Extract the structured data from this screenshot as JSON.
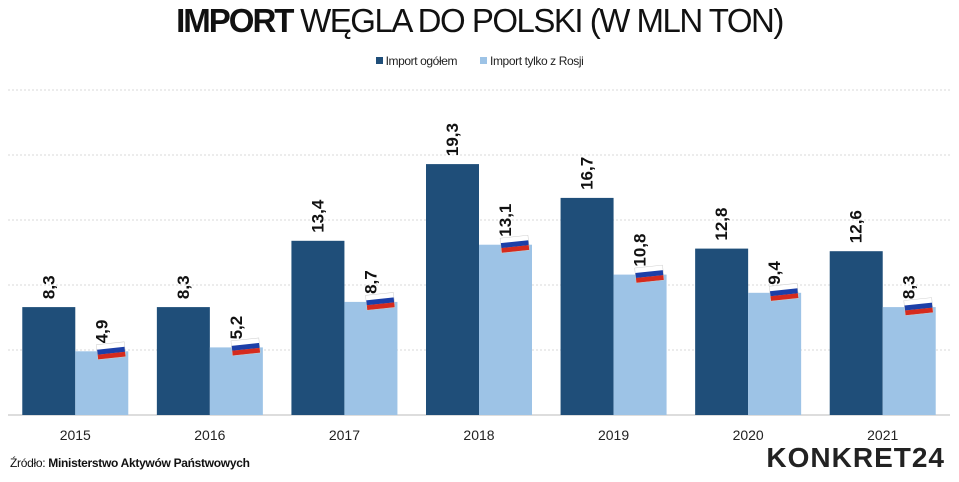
{
  "chart_data": {
    "type": "bar",
    "title_bold": "IMPORT",
    "title_rest": "WĘGLA DO POLSKI (W MLN TON)",
    "categories": [
      "2015",
      "2016",
      "2017",
      "2018",
      "2019",
      "2020",
      "2021"
    ],
    "series": [
      {
        "name": "Import ogółem",
        "values": [
          8.3,
          8.3,
          13.4,
          19.3,
          16.7,
          12.8,
          12.6
        ],
        "labels": [
          "8,3",
          "8,3",
          "13,4",
          "19,3",
          "16,7",
          "12,8",
          "12,6"
        ],
        "color": "#1f4e79"
      },
      {
        "name": "Import tylko z Rosji",
        "values": [
          4.9,
          5.2,
          8.7,
          13.1,
          10.8,
          9.4,
          8.3
        ],
        "labels": [
          "4,9",
          "5,2",
          "8,7",
          "13,1",
          "10,8",
          "9,4",
          "8,3"
        ],
        "color": "#9dc3e6",
        "marker_icon": "russia-flag-icon"
      }
    ],
    "ylim": [
      0,
      25
    ],
    "yticks": [
      0,
      5,
      10,
      15,
      20,
      25
    ],
    "grid": true,
    "legend": "top-center",
    "xlabel": "",
    "ylabel": ""
  },
  "source": {
    "label": "Źródło:",
    "value": "Ministerstwo Aktywów Państwowych"
  },
  "logo": "KONKRET24"
}
